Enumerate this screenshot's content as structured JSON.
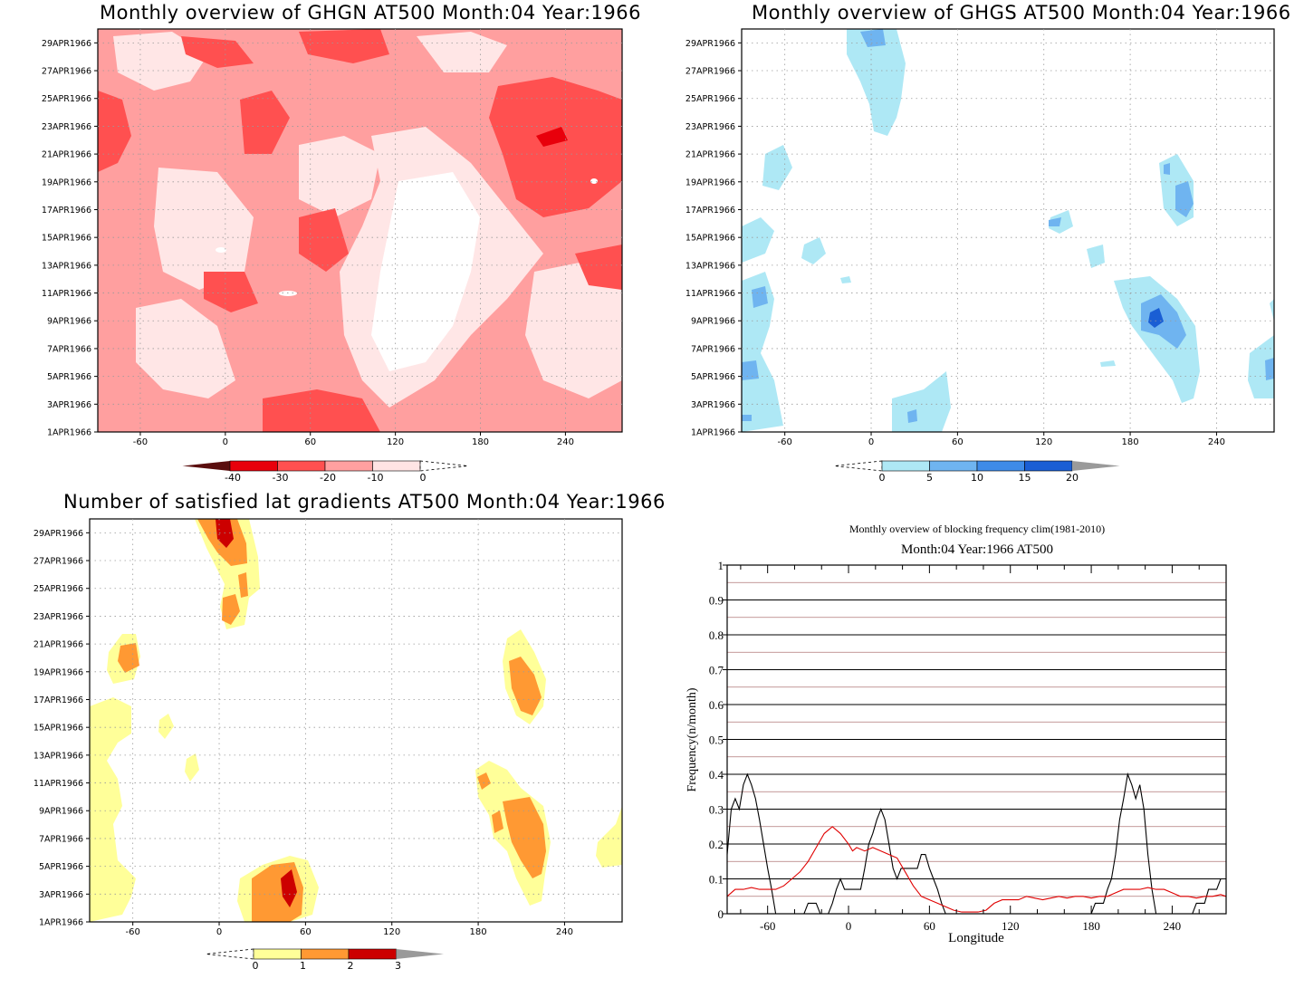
{
  "panels": {
    "ghgn": {
      "title": "Monthly overview of GHGN AT500 Month:04 Year:1966",
      "colorbar": {
        "labels": [
          "-40",
          "-30",
          "-20",
          "-10",
          "0"
        ],
        "colors": [
          "#5a0e0e",
          "#e8000b",
          "#ff5050",
          "#ffa0a0",
          "#ffe4e4"
        ]
      }
    },
    "ghgs": {
      "title": "Monthly overview of GHGS AT500 Month:04 Year:1966",
      "colorbar": {
        "labels": [
          "0",
          "5",
          "10",
          "15",
          "20"
        ],
        "colors": [
          "#aee8f5",
          "#6fb4f0",
          "#3e8be8",
          "#1a5ed4",
          "#9a9a9a"
        ]
      }
    },
    "nsat": {
      "title": "Number of satisfied lat gradients AT500 Month:04 Year:1966",
      "colorbar": {
        "labels": [
          "0",
          "1",
          "2",
          "3"
        ],
        "colors": [
          "#ffff99",
          "#ff9933",
          "#cc0000",
          "#9a9a9a"
        ]
      }
    }
  },
  "map_axes": {
    "y_ticks": [
      "1APR1966",
      "3APR1966",
      "5APR1966",
      "7APR1966",
      "9APR1966",
      "11APR1966",
      "13APR1966",
      "15APR1966",
      "17APR1966",
      "19APR1966",
      "21APR1966",
      "23APR1966",
      "25APR1966",
      "27APR1966",
      "29APR1966"
    ],
    "x_ticks": [
      "-60",
      "0",
      "60",
      "120",
      "180",
      "240"
    ],
    "x_range": [
      -90,
      280
    ]
  },
  "chart_data": {
    "type": "line",
    "title": "Monthly overview of blocking frequency clim(1981-2010)",
    "subtitle": "Month:04 Year:1966  AT500",
    "xlabel": "Longitude",
    "ylabel": "Frequency(n/month)",
    "xlim": [
      -90,
      280
    ],
    "ylim": [
      0,
      1
    ],
    "x_ticks": [
      "-60",
      "0",
      "60",
      "120",
      "180",
      "240"
    ],
    "y_ticks": [
      "0",
      "0.1",
      "0.2",
      "0.3",
      "0.4",
      "0.5",
      "0.6",
      "0.7",
      "0.8",
      "0.9",
      "1"
    ],
    "grid": true,
    "series": [
      {
        "color": "#000000",
        "points": [
          [
            -90,
            0.17
          ],
          [
            -87,
            0.3
          ],
          [
            -84,
            0.33
          ],
          [
            -81,
            0.3
          ],
          [
            -78,
            0.37
          ],
          [
            -75,
            0.4
          ],
          [
            -72,
            0.37
          ],
          [
            -69,
            0.33
          ],
          [
            -66,
            0.27
          ],
          [
            -63,
            0.2
          ],
          [
            -60,
            0.13
          ],
          [
            -57,
            0.07
          ],
          [
            -54,
            0
          ],
          [
            -48,
            0
          ],
          [
            -45,
            0
          ],
          [
            -42,
            0
          ],
          [
            -39,
            0
          ],
          [
            -36,
            0
          ],
          [
            -33,
            0
          ],
          [
            -30,
            0.03
          ],
          [
            -27,
            0.03
          ],
          [
            -24,
            0.03
          ],
          [
            -21,
            0
          ],
          [
            -15,
            0
          ],
          [
            -12,
            0.03
          ],
          [
            -9,
            0.07
          ],
          [
            -6,
            0.1
          ],
          [
            -3,
            0.07
          ],
          [
            0,
            0.07
          ],
          [
            3,
            0.07
          ],
          [
            6,
            0.07
          ],
          [
            9,
            0.07
          ],
          [
            12,
            0.13
          ],
          [
            15,
            0.2
          ],
          [
            18,
            0.23
          ],
          [
            21,
            0.27
          ],
          [
            24,
            0.3
          ],
          [
            27,
            0.27
          ],
          [
            30,
            0.2
          ],
          [
            33,
            0.13
          ],
          [
            36,
            0.1
          ],
          [
            39,
            0.13
          ],
          [
            42,
            0.13
          ],
          [
            45,
            0.13
          ],
          [
            48,
            0.13
          ],
          [
            51,
            0.13
          ],
          [
            54,
            0.17
          ],
          [
            57,
            0.17
          ],
          [
            60,
            0.13
          ],
          [
            63,
            0.1
          ],
          [
            66,
            0.07
          ],
          [
            69,
            0.03
          ],
          [
            72,
            0
          ],
          [
            170,
            0
          ],
          [
            180,
            0
          ],
          [
            183,
            0.03
          ],
          [
            186,
            0.03
          ],
          [
            189,
            0.03
          ],
          [
            192,
            0.07
          ],
          [
            195,
            0.1
          ],
          [
            198,
            0.17
          ],
          [
            201,
            0.27
          ],
          [
            204,
            0.33
          ],
          [
            207,
            0.4
          ],
          [
            210,
            0.37
          ],
          [
            213,
            0.33
          ],
          [
            216,
            0.37
          ],
          [
            219,
            0.3
          ],
          [
            222,
            0.17
          ],
          [
            225,
            0.07
          ],
          [
            228,
            0
          ],
          [
            255,
            0
          ],
          [
            258,
            0.03
          ],
          [
            261,
            0.03
          ],
          [
            264,
            0.03
          ],
          [
            267,
            0.07
          ],
          [
            270,
            0.07
          ],
          [
            273,
            0.07
          ],
          [
            276,
            0.1
          ],
          [
            280,
            0.1
          ]
        ]
      },
      {
        "color": "#e00000",
        "points": [
          [
            -90,
            0.05
          ],
          [
            -84,
            0.07
          ],
          [
            -78,
            0.07
          ],
          [
            -72,
            0.075
          ],
          [
            -66,
            0.07
          ],
          [
            -60,
            0.07
          ],
          [
            -54,
            0.07
          ],
          [
            -48,
            0.08
          ],
          [
            -42,
            0.1
          ],
          [
            -36,
            0.12
          ],
          [
            -30,
            0.15
          ],
          [
            -24,
            0.19
          ],
          [
            -18,
            0.23
          ],
          [
            -12,
            0.25
          ],
          [
            -6,
            0.23
          ],
          [
            0,
            0.2
          ],
          [
            3,
            0.18
          ],
          [
            6,
            0.19
          ],
          [
            12,
            0.18
          ],
          [
            18,
            0.19
          ],
          [
            24,
            0.18
          ],
          [
            30,
            0.17
          ],
          [
            36,
            0.16
          ],
          [
            42,
            0.12
          ],
          [
            48,
            0.08
          ],
          [
            54,
            0.05
          ],
          [
            60,
            0.04
          ],
          [
            66,
            0.03
          ],
          [
            72,
            0.02
          ],
          [
            78,
            0.01
          ],
          [
            84,
            0.005
          ],
          [
            90,
            0.005
          ],
          [
            96,
            0.005
          ],
          [
            102,
            0.01
          ],
          [
            108,
            0.03
          ],
          [
            114,
            0.04
          ],
          [
            120,
            0.04
          ],
          [
            126,
            0.04
          ],
          [
            132,
            0.05
          ],
          [
            138,
            0.045
          ],
          [
            144,
            0.04
          ],
          [
            150,
            0.045
          ],
          [
            156,
            0.05
          ],
          [
            162,
            0.045
          ],
          [
            168,
            0.05
          ],
          [
            174,
            0.05
          ],
          [
            180,
            0.045
          ],
          [
            186,
            0.05
          ],
          [
            192,
            0.05
          ],
          [
            198,
            0.06
          ],
          [
            204,
            0.07
          ],
          [
            210,
            0.07
          ],
          [
            216,
            0.07
          ],
          [
            222,
            0.075
          ],
          [
            228,
            0.07
          ],
          [
            234,
            0.07
          ],
          [
            240,
            0.06
          ],
          [
            246,
            0.05
          ],
          [
            252,
            0.05
          ],
          [
            258,
            0.045
          ],
          [
            264,
            0.05
          ],
          [
            270,
            0.05
          ],
          [
            276,
            0.055
          ],
          [
            280,
            0.05
          ]
        ]
      }
    ]
  }
}
